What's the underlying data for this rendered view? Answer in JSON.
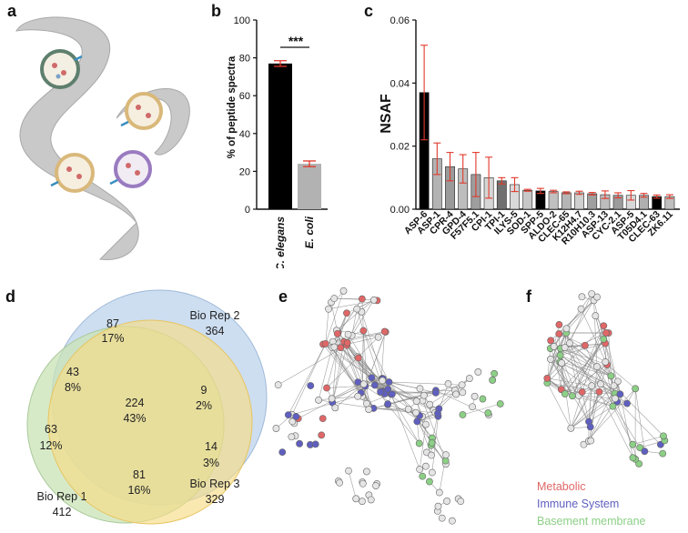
{
  "panels": {
    "a": "a",
    "b": "b",
    "c": "c",
    "d": "d",
    "e": "e",
    "f": "f"
  },
  "chart_data": [
    {
      "panel": "b",
      "type": "bar",
      "categories": [
        "C. elegans",
        "E. coli"
      ],
      "values": [
        77,
        24
      ],
      "errors": [
        1.5,
        1.5
      ],
      "colors": [
        "#000000",
        "#b2b2b2"
      ],
      "ylabel": "% of peptide spectra",
      "ylim": [
        0,
        100
      ],
      "yticks": [
        0,
        20,
        40,
        60,
        80,
        100
      ],
      "significance": "***"
    },
    {
      "panel": "c",
      "type": "bar",
      "ylabel": "NSAF",
      "ylim": [
        0,
        0.06
      ],
      "yticks": [
        "0.00",
        "0.02",
        "0.04",
        "0.06"
      ],
      "categories": [
        "ASP-6",
        "ASP-1",
        "CPR-4",
        "GPD-4",
        "F57F5.1",
        "CPI-1",
        "TPI-1",
        "ILYS-5",
        "SOD-1",
        "SPP-5",
        "ALDO-2",
        "CLEC-65",
        "K12H4.7",
        "R10H10.3",
        "ASP-13",
        "CYC-2.1",
        "ASP-5",
        "T05D4.1",
        "CLEC-63",
        "ZK6.11"
      ],
      "values": [
        0.037,
        0.016,
        0.0135,
        0.0128,
        0.011,
        0.01,
        0.009,
        0.0078,
        0.006,
        0.0058,
        0.0056,
        0.0052,
        0.0052,
        0.0049,
        0.0046,
        0.0044,
        0.0044,
        0.0044,
        0.004,
        0.004
      ],
      "errors": [
        0.015,
        0.005,
        0.0045,
        0.0045,
        0.007,
        0.0065,
        0.001,
        0.0022,
        0.0003,
        0.0008,
        0.0004,
        0.0003,
        0.0005,
        0.0004,
        0.0012,
        0.0008,
        0.0015,
        0.0006,
        0.0005,
        0.0006
      ],
      "colors": [
        "#000000",
        "#b3b3b3",
        "#9a9a9a",
        "#bdbdbd",
        "#9e9e9e",
        "#d6d6d6",
        "#707070",
        "#d9d9d9",
        "#c7c7c7",
        "#000000",
        "#c0c0c0",
        "#b5b5b5",
        "#d0d0d0",
        "#9f9f9f",
        "#bdbdbd",
        "#9c9c9c",
        "#d8d8d8",
        "#b0b0b0",
        "#000000",
        "#bfbfbf"
      ]
    }
  ],
  "venn": {
    "sets": [
      {
        "name": "Bio Rep 1",
        "total": "412",
        "color": "#c9e3b5"
      },
      {
        "name": "Bio Rep 2",
        "total": "364",
        "color": "#bcd3ec"
      },
      {
        "name": "Bio Rep 3",
        "total": "329",
        "color": "#f6dc86"
      }
    ],
    "regions": [
      {
        "id": "only2",
        "count": "87",
        "pct": "17%"
      },
      {
        "id": "r1r2",
        "count": "43",
        "pct": "8%"
      },
      {
        "id": "only1",
        "count": "63",
        "pct": "12%"
      },
      {
        "id": "all",
        "count": "224",
        "pct": "43%"
      },
      {
        "id": "r2r3",
        "count": "9",
        "pct": "2%"
      },
      {
        "id": "only3",
        "count": "14",
        "pct": "3%"
      },
      {
        "id": "r1r3",
        "count": "81",
        "pct": "16%"
      }
    ]
  },
  "network_legend": [
    {
      "label": "Metabolic",
      "color": "#e06767"
    },
    {
      "label": "Immune System",
      "color": "#5f5fc0"
    },
    {
      "label": "Basement membrane",
      "color": "#8ccf86"
    }
  ],
  "node_colors": {
    "red": "#e06767",
    "blue": "#5f5fc0",
    "green": "#8ccf86",
    "grey": "#e5e5e5"
  }
}
